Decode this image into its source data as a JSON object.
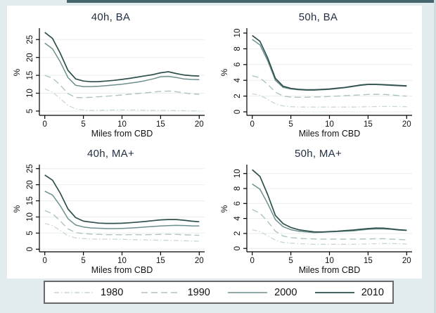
{
  "figure": {
    "bg": "#e2ecee",
    "card_bg": "#ffffff",
    "top_strip_color": "#47656c",
    "grid_color": "#e9eeed",
    "axis_color": "#000000",
    "title_color": "#232f42",
    "tick_color": "#111111"
  },
  "legend": {
    "items": [
      {
        "label": "1980",
        "year": "1980"
      },
      {
        "label": "1990",
        "year": "1990"
      },
      {
        "label": "2000",
        "year": "2000"
      },
      {
        "label": "2010",
        "year": "2010"
      }
    ]
  },
  "series_styles": {
    "1980": {
      "color": "#c8d7d6",
      "dash": "7 3 1.5 3",
      "width": 1.3
    },
    "1990": {
      "color": "#aec4c3",
      "dash": "9 5",
      "width": 1.4
    },
    "2000": {
      "color": "#6d8f8d",
      "dash": "",
      "width": 1.5
    },
    "2010": {
      "color": "#30504e",
      "dash": "",
      "width": 1.7
    }
  },
  "chart_data": [
    {
      "type": "line",
      "title": "40h, BA",
      "xlabel": "Miles from CBD",
      "ylabel": "%",
      "x": [
        0,
        1,
        2,
        3,
        4,
        5,
        6,
        7,
        8,
        9,
        10,
        11,
        12,
        13,
        14,
        15,
        16,
        17,
        18,
        19,
        20
      ],
      "xticks": [
        0,
        5,
        10,
        15,
        20
      ],
      "yticks": [
        5,
        10,
        15,
        20,
        25
      ],
      "ylim": [
        3.8,
        27.8
      ],
      "grid": true,
      "legend_position": "bottom-shared",
      "series": [
        {
          "name": "1980",
          "values": [
            11.2,
            10.3,
            8.5,
            6.6,
            5.6,
            5.3,
            5.2,
            5.2,
            5.25,
            5.3,
            5.3,
            5.3,
            5.3,
            5.25,
            5.2,
            5.2,
            5.2,
            5.15,
            5.1,
            5.05,
            5.0
          ]
        },
        {
          "name": "1990",
          "values": [
            15.0,
            14.2,
            12.3,
            9.9,
            8.8,
            8.75,
            8.85,
            9.0,
            9.15,
            9.3,
            9.5,
            9.7,
            9.9,
            10.1,
            10.3,
            10.5,
            10.6,
            10.4,
            10.1,
            9.8,
            9.7
          ]
        },
        {
          "name": "2000",
          "values": [
            24.0,
            22.4,
            18.8,
            14.4,
            12.2,
            11.85,
            11.85,
            11.95,
            12.1,
            12.3,
            12.5,
            12.8,
            13.1,
            13.5,
            14.0,
            14.6,
            14.7,
            14.4,
            14.0,
            13.85,
            13.8
          ]
        },
        {
          "name": "2010",
          "values": [
            27.0,
            25.3,
            21.2,
            16.4,
            14.0,
            13.4,
            13.2,
            13.25,
            13.4,
            13.6,
            13.85,
            14.15,
            14.5,
            14.85,
            15.2,
            15.7,
            16.0,
            15.5,
            15.1,
            14.9,
            14.8
          ]
        }
      ]
    },
    {
      "type": "line",
      "title": "50h, BA",
      "xlabel": "Miles from CBD",
      "ylabel": "%",
      "x": [
        0,
        1,
        2,
        3,
        4,
        5,
        6,
        7,
        8,
        9,
        10,
        11,
        12,
        13,
        14,
        15,
        16,
        17,
        18,
        19,
        20
      ],
      "xticks": [
        0,
        5,
        10,
        15,
        20
      ],
      "yticks": [
        0,
        2,
        4,
        6,
        8,
        10
      ],
      "ylim": [
        -0.45,
        10.45
      ],
      "grid": true,
      "legend_position": "bottom-shared",
      "series": [
        {
          "name": "1980",
          "values": [
            2.3,
            2.1,
            1.6,
            1.0,
            0.75,
            0.65,
            0.62,
            0.6,
            0.6,
            0.6,
            0.6,
            0.6,
            0.6,
            0.6,
            0.62,
            0.65,
            0.67,
            0.68,
            0.68,
            0.67,
            0.65
          ]
        },
        {
          "name": "1990",
          "values": [
            4.6,
            4.3,
            3.5,
            2.5,
            2.0,
            1.87,
            1.85,
            1.85,
            1.88,
            1.9,
            1.95,
            2.0,
            2.05,
            2.1,
            2.15,
            2.2,
            2.22,
            2.2,
            2.15,
            2.05,
            2.0
          ]
        },
        {
          "name": "2000",
          "values": [
            9.2,
            8.5,
            6.5,
            4.0,
            3.1,
            2.9,
            2.8,
            2.75,
            2.75,
            2.8,
            2.85,
            2.95,
            3.05,
            3.2,
            3.35,
            3.45,
            3.45,
            3.4,
            3.35,
            3.3,
            3.25
          ]
        },
        {
          "name": "2010",
          "values": [
            9.7,
            8.95,
            6.85,
            4.25,
            3.25,
            2.97,
            2.86,
            2.8,
            2.8,
            2.85,
            2.9,
            3.0,
            3.1,
            3.25,
            3.4,
            3.5,
            3.5,
            3.45,
            3.4,
            3.35,
            3.3
          ]
        }
      ]
    },
    {
      "type": "line",
      "title": "40h, MA+",
      "xlabel": "Miles from CBD",
      "ylabel": "%",
      "x": [
        0,
        1,
        2,
        3,
        4,
        5,
        6,
        7,
        8,
        9,
        10,
        11,
        12,
        13,
        14,
        15,
        16,
        17,
        18,
        19,
        20
      ],
      "xticks": [
        0,
        5,
        10,
        15,
        20
      ],
      "yticks": [
        0,
        5,
        10,
        15,
        20,
        25
      ],
      "ylim": [
        -0.8,
        25.8
      ],
      "grid": true,
      "legend_position": "bottom-shared",
      "series": [
        {
          "name": "1980",
          "values": [
            8.0,
            7.3,
            5.8,
            4.2,
            3.5,
            3.3,
            3.2,
            3.15,
            3.1,
            3.1,
            3.05,
            3.0,
            2.95,
            2.9,
            2.85,
            2.8,
            2.75,
            2.7,
            2.62,
            2.55,
            2.5
          ]
        },
        {
          "name": "1990",
          "values": [
            12.0,
            11.0,
            8.8,
            6.3,
            5.15,
            4.85,
            4.7,
            4.6,
            4.5,
            4.5,
            4.5,
            4.5,
            4.5,
            4.5,
            4.55,
            4.6,
            4.62,
            4.6,
            4.5,
            4.4,
            4.3
          ]
        },
        {
          "name": "2000",
          "values": [
            18.0,
            16.8,
            13.5,
            9.5,
            7.5,
            6.9,
            6.6,
            6.5,
            6.4,
            6.4,
            6.45,
            6.55,
            6.7,
            6.9,
            7.05,
            7.2,
            7.3,
            7.4,
            7.35,
            7.25,
            7.2
          ]
        },
        {
          "name": "2010",
          "values": [
            23.0,
            21.4,
            17.4,
            12.5,
            9.8,
            8.7,
            8.4,
            8.1,
            8.0,
            8.0,
            8.05,
            8.2,
            8.4,
            8.6,
            8.85,
            9.1,
            9.2,
            9.2,
            9.0,
            8.7,
            8.5
          ]
        }
      ]
    },
    {
      "type": "line",
      "title": "50h, MA+",
      "xlabel": "Miles from CBD",
      "ylabel": "%",
      "x": [
        0,
        1,
        2,
        3,
        4,
        5,
        6,
        7,
        8,
        9,
        10,
        11,
        12,
        13,
        14,
        15,
        16,
        17,
        18,
        19,
        20
      ],
      "xticks": [
        0,
        5,
        10,
        15,
        20
      ],
      "yticks": [
        0,
        2,
        4,
        6,
        8,
        10
      ],
      "ylim": [
        -0.45,
        11.0
      ],
      "grid": true,
      "legend_position": "bottom-shared",
      "series": [
        {
          "name": "1980",
          "values": [
            2.5,
            2.25,
            1.7,
            1.1,
            0.8,
            0.7,
            0.65,
            0.6,
            0.55,
            0.55,
            0.55,
            0.55,
            0.55,
            0.55,
            0.58,
            0.6,
            0.63,
            0.65,
            0.65,
            0.62,
            0.6
          ]
        },
        {
          "name": "1990",
          "values": [
            5.2,
            4.7,
            3.6,
            2.3,
            1.65,
            1.45,
            1.35,
            1.3,
            1.27,
            1.25,
            1.25,
            1.25,
            1.25,
            1.25,
            1.25,
            1.27,
            1.3,
            1.3,
            1.25,
            1.2,
            1.15
          ]
        },
        {
          "name": "2000",
          "values": [
            8.6,
            7.9,
            6.0,
            3.85,
            2.9,
            2.5,
            2.3,
            2.2,
            2.12,
            2.15,
            2.2,
            2.25,
            2.3,
            2.35,
            2.45,
            2.55,
            2.6,
            2.6,
            2.55,
            2.45,
            2.4
          ]
        },
        {
          "name": "2010",
          "values": [
            10.5,
            9.6,
            7.2,
            4.4,
            3.3,
            2.8,
            2.5,
            2.35,
            2.22,
            2.2,
            2.25,
            2.3,
            2.38,
            2.45,
            2.55,
            2.65,
            2.72,
            2.7,
            2.6,
            2.5,
            2.42
          ]
        }
      ]
    }
  ]
}
